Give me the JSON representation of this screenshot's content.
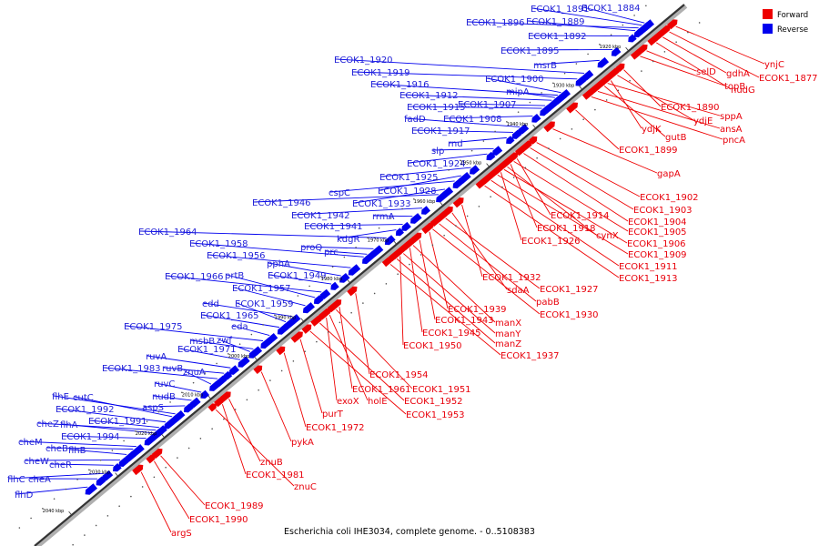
{
  "caption": "Escherichia coli IHE3034, complete genome. - 0..5108383",
  "legend": [
    {
      "label": "Forward",
      "color": "#ee0000"
    },
    {
      "label": "Reverse",
      "color": "#0000ee"
    }
  ],
  "colors": {
    "forward": "#ee0000",
    "reverse": "#0000ee",
    "forward_text": "#e8000b",
    "reverse_text": "#1f1fd6"
  },
  "axis": {
    "unit": "kbp",
    "ticks": [
      {
        "kbp": 1920,
        "label": "1920 kbp"
      },
      {
        "kbp": 1930,
        "label": "1930 kbp"
      },
      {
        "kbp": 1940,
        "label": "1940 kbp"
      },
      {
        "kbp": 1950,
        "label": "1950 kbp"
      },
      {
        "kbp": 1960,
        "label": "1960 kbp"
      },
      {
        "kbp": 1970,
        "label": "1970 kbp"
      },
      {
        "kbp": 1980,
        "label": "1980 kbp"
      },
      {
        "kbp": 1990,
        "label": "1990 kbp"
      },
      {
        "kbp": 2000,
        "label": "2000 kbp"
      },
      {
        "kbp": 2010,
        "label": "2010 kbp"
      },
      {
        "kbp": 2020,
        "label": "2020 kbp"
      },
      {
        "kbp": 2030,
        "label": "2030 kbp"
      },
      {
        "kbp": 2040,
        "label": "2040 kbp"
      }
    ]
  },
  "genes": [
    {
      "name": "ECOK1_1884",
      "strand": "reverse",
      "kbp": 1915.0
    },
    {
      "name": "ECOK1_1891",
      "strand": "reverse",
      "kbp": 1915.6
    },
    {
      "name": "ECOK1_1896",
      "strand": "reverse",
      "kbp": 1916.3
    },
    {
      "name": "ECOK1_1889",
      "strand": "reverse",
      "kbp": 1917.0
    },
    {
      "name": "ECOK1_1892",
      "strand": "reverse",
      "kbp": 1918.4
    },
    {
      "name": "ECOK1_1895",
      "strand": "reverse",
      "kbp": 1921.9
    },
    {
      "name": "msrB",
      "strand": "reverse",
      "kbp": 1924.7
    },
    {
      "name": "ECOK1_1920",
      "strand": "reverse",
      "kbp": 1928.0
    },
    {
      "name": "ECOK1_1919",
      "strand": "reverse",
      "kbp": 1929.5
    },
    {
      "name": "ECOK1_1900",
      "strand": "reverse",
      "kbp": 1933.0
    },
    {
      "name": "ECOK1_1916",
      "strand": "reverse",
      "kbp": 1933.7
    },
    {
      "name": "mipA",
      "strand": "reverse",
      "kbp": 1934.3
    },
    {
      "name": "ECOK1_1912",
      "strand": "reverse",
      "kbp": 1935.0
    },
    {
      "name": "ECOK1_1907",
      "strand": "reverse",
      "kbp": 1936.4
    },
    {
      "name": "ECOK1_1915",
      "strand": "reverse",
      "kbp": 1937.1
    },
    {
      "name": "ECOK1_1908",
      "strand": "reverse",
      "kbp": 1939.1
    },
    {
      "name": "fadD",
      "strand": "reverse",
      "kbp": 1941.9
    },
    {
      "name": "ECOK1_1917",
      "strand": "reverse",
      "kbp": 1943.3
    },
    {
      "name": "rnd",
      "strand": "reverse",
      "kbp": 1944.7
    },
    {
      "name": "slp",
      "strand": "reverse",
      "kbp": 1947.5
    },
    {
      "name": "ECOK1_1924",
      "strand": "reverse",
      "kbp": 1948.9
    },
    {
      "name": "ECOK1_1925",
      "strand": "reverse",
      "kbp": 1952.4
    },
    {
      "name": "ECOK1_1928",
      "strand": "reverse",
      "kbp": 1954.5
    },
    {
      "name": "cspC",
      "strand": "reverse",
      "kbp": 1955.9
    },
    {
      "name": "ECOK1_1933",
      "strand": "reverse",
      "kbp": 1958.0
    },
    {
      "name": "ECOK1_1946",
      "strand": "reverse",
      "kbp": 1959.4
    },
    {
      "name": "ECOK1_1942",
      "strand": "reverse",
      "kbp": 1962.9
    },
    {
      "name": "rrmA",
      "strand": "reverse",
      "kbp": 1965.0
    },
    {
      "name": "ECOK1_1941",
      "strand": "reverse",
      "kbp": 1967.1
    },
    {
      "name": "kdgR",
      "strand": "reverse",
      "kbp": 1968.5
    },
    {
      "name": "ECOK1_1964",
      "strand": "reverse",
      "kbp": 1970.6
    },
    {
      "name": "proQ",
      "strand": "reverse",
      "kbp": 1973.4
    },
    {
      "name": "prc",
      "strand": "reverse",
      "kbp": 1974.8
    },
    {
      "name": "ECOK1_1958",
      "strand": "reverse",
      "kbp": 1975.5
    },
    {
      "name": "ECOK1_1956",
      "strand": "reverse",
      "kbp": 1978.3
    },
    {
      "name": "pphA",
      "strand": "reverse",
      "kbp": 1980.4
    },
    {
      "name": "ECOK1_1949",
      "strand": "reverse",
      "kbp": 1982.5
    },
    {
      "name": "ECOK1_1966",
      "strand": "reverse",
      "kbp": 1984.6
    },
    {
      "name": "prtB",
      "strand": "reverse",
      "kbp": 1986.0
    },
    {
      "name": "ECOK1_1957",
      "strand": "reverse",
      "kbp": 1988.1
    },
    {
      "name": "edd",
      "strand": "reverse",
      "kbp": 1990.9
    },
    {
      "name": "ECOK1_1959",
      "strand": "reverse",
      "kbp": 1992.3
    },
    {
      "name": "ECOK1_1965",
      "strand": "reverse",
      "kbp": 1993.7
    },
    {
      "name": "eda",
      "strand": "reverse",
      "kbp": 1995.8
    },
    {
      "name": "ECOK1_1975",
      "strand": "reverse",
      "kbp": 1997.2
    },
    {
      "name": "msbB",
      "strand": "reverse",
      "kbp": 1999.3
    },
    {
      "name": "zwf",
      "strand": "reverse",
      "kbp": 2000.0
    },
    {
      "name": "ECOK1_1971",
      "strand": "reverse",
      "kbp": 2002.1
    },
    {
      "name": "ruvA",
      "strand": "reverse",
      "kbp": 2004.2
    },
    {
      "name": "ruvB",
      "strand": "reverse",
      "kbp": 2005.6
    },
    {
      "name": "ECOK1_1983",
      "strand": "reverse",
      "kbp": 2007.0
    },
    {
      "name": "znuA",
      "strand": "reverse",
      "kbp": 2008.4
    },
    {
      "name": "ruvC",
      "strand": "reverse",
      "kbp": 2010.5
    },
    {
      "name": "nudB",
      "strand": "reverse",
      "kbp": 2012.6
    },
    {
      "name": "aspS",
      "strand": "reverse",
      "kbp": 2014.0
    },
    {
      "name": "flhE",
      "strand": "reverse",
      "kbp": 2016.1
    },
    {
      "name": "cutC",
      "strand": "reverse",
      "kbp": 2016.8
    },
    {
      "name": "ECOK1_1992",
      "strand": "reverse",
      "kbp": 2018.2
    },
    {
      "name": "ECOK1_1991",
      "strand": "reverse",
      "kbp": 2019.6
    },
    {
      "name": "cheZ",
      "strand": "reverse",
      "kbp": 2020.3
    },
    {
      "name": "flhA",
      "strand": "reverse",
      "kbp": 2021.0
    },
    {
      "name": "ECOK1_1994",
      "strand": "reverse",
      "kbp": 2022.4
    },
    {
      "name": "cheM",
      "strand": "reverse",
      "kbp": 2024.5
    },
    {
      "name": "cheB",
      "strand": "reverse",
      "kbp": 2025.2
    },
    {
      "name": "flhB",
      "strand": "reverse",
      "kbp": 2026.6
    },
    {
      "name": "cheW",
      "strand": "reverse",
      "kbp": 2028.0
    },
    {
      "name": "cheR",
      "strand": "reverse",
      "kbp": 2029.4
    },
    {
      "name": "flhC",
      "strand": "reverse",
      "kbp": 2031.5
    },
    {
      "name": "cheA",
      "strand": "reverse",
      "kbp": 2032.9
    },
    {
      "name": "flhD",
      "strand": "reverse",
      "kbp": 2035.0
    },
    {
      "name": "ynjC",
      "strand": "forward",
      "kbp": 1911.4
    },
    {
      "name": "ECOK1_1877",
      "strand": "forward",
      "kbp": 1912.8
    },
    {
      "name": "gdhA",
      "strand": "forward",
      "kbp": 1914.2
    },
    {
      "name": "nudG",
      "strand": "forward",
      "kbp": 1915.6
    },
    {
      "name": "selD",
      "strand": "forward",
      "kbp": 1917.7
    },
    {
      "name": "topB",
      "strand": "forward",
      "kbp": 1919.1
    },
    {
      "name": "ECOK1_1890",
      "strand": "forward",
      "kbp": 1922.6
    },
    {
      "name": "ydjE",
      "strand": "forward",
      "kbp": 1924.0
    },
    {
      "name": "ydjK",
      "strand": "forward",
      "kbp": 1925.4
    },
    {
      "name": "sppA",
      "strand": "forward",
      "kbp": 1926.1
    },
    {
      "name": "gutB",
      "strand": "forward",
      "kbp": 1926.8
    },
    {
      "name": "ansA",
      "strand": "forward",
      "kbp": 1928.2
    },
    {
      "name": "pncA",
      "strand": "forward",
      "kbp": 1929.6
    },
    {
      "name": "ECOK1_1899",
      "strand": "forward",
      "kbp": 1933.0
    },
    {
      "name": "gapA",
      "strand": "forward",
      "kbp": 1937.9
    },
    {
      "name": "ECOK1_1902",
      "strand": "forward",
      "kbp": 1941.4
    },
    {
      "name": "ECOK1_1903",
      "strand": "forward",
      "kbp": 1942.8
    },
    {
      "name": "ECOK1_1904",
      "strand": "forward",
      "kbp": 1944.2
    },
    {
      "name": "ECOK1_1914",
      "strand": "forward",
      "kbp": 1945.6
    },
    {
      "name": "ECOK1_1905",
      "strand": "forward",
      "kbp": 1946.3
    },
    {
      "name": "ECOK1_1918",
      "strand": "forward",
      "kbp": 1947.0
    },
    {
      "name": "cynX",
      "strand": "forward",
      "kbp": 1947.7
    },
    {
      "name": "ECOK1_1906",
      "strand": "forward",
      "kbp": 1948.4
    },
    {
      "name": "ECOK1_1926",
      "strand": "forward",
      "kbp": 1949.1
    },
    {
      "name": "ECOK1_1909",
      "strand": "forward",
      "kbp": 1949.8
    },
    {
      "name": "ECOK1_1911",
      "strand": "forward",
      "kbp": 1951.2
    },
    {
      "name": "ECOK1_1913",
      "strand": "forward",
      "kbp": 1952.6
    },
    {
      "name": "ECOK1_1932",
      "strand": "forward",
      "kbp": 1957.5
    },
    {
      "name": "sdaA",
      "strand": "forward",
      "kbp": 1959.6
    },
    {
      "name": "ECOK1_1927",
      "strand": "forward",
      "kbp": 1961.0
    },
    {
      "name": "pabB",
      "strand": "forward",
      "kbp": 1962.4
    },
    {
      "name": "ECOK1_1930",
      "strand": "forward",
      "kbp": 1963.8
    },
    {
      "name": "ECOK1_1939",
      "strand": "forward",
      "kbp": 1964.5
    },
    {
      "name": "ECOK1_1943",
      "strand": "forward",
      "kbp": 1966.6
    },
    {
      "name": "manX",
      "strand": "forward",
      "kbp": 1968.0
    },
    {
      "name": "ECOK1_1945",
      "strand": "forward",
      "kbp": 1968.7
    },
    {
      "name": "manY",
      "strand": "forward",
      "kbp": 1970.1
    },
    {
      "name": "ECOK1_1950",
      "strand": "forward",
      "kbp": 1970.8
    },
    {
      "name": "manZ",
      "strand": "forward",
      "kbp": 1971.5
    },
    {
      "name": "ECOK1_1937",
      "strand": "forward",
      "kbp": 1972.9
    },
    {
      "name": "ECOK1_1954",
      "strand": "forward",
      "kbp": 1980.4
    },
    {
      "name": "ECOK1_1961",
      "strand": "forward",
      "kbp": 1983.9
    },
    {
      "name": "ECOK1_1951",
      "strand": "forward",
      "kbp": 1984.6
    },
    {
      "name": "holE",
      "strand": "forward",
      "kbp": 1986.0
    },
    {
      "name": "exoX",
      "strand": "forward",
      "kbp": 1986.7
    },
    {
      "name": "ECOK1_1952",
      "strand": "forward",
      "kbp": 1988.1
    },
    {
      "name": "ECOK1_1953",
      "strand": "forward",
      "kbp": 1990.2
    },
    {
      "name": "purT",
      "strand": "forward",
      "kbp": 1992.3
    },
    {
      "name": "ECOK1_1972",
      "strand": "forward",
      "kbp": 1995.8
    },
    {
      "name": "pykA",
      "strand": "forward",
      "kbp": 2000.7
    },
    {
      "name": "znuB",
      "strand": "forward",
      "kbp": 2007.7
    },
    {
      "name": "ECOK1_1981",
      "strand": "forward",
      "kbp": 2009.1
    },
    {
      "name": "znuC",
      "strand": "forward",
      "kbp": 2010.5
    },
    {
      "name": "ECOK1_1989",
      "strand": "forward",
      "kbp": 2022.4
    },
    {
      "name": "ECOK1_1990",
      "strand": "forward",
      "kbp": 2023.8
    },
    {
      "name": "argS",
      "strand": "forward",
      "kbp": 2026.6
    }
  ]
}
